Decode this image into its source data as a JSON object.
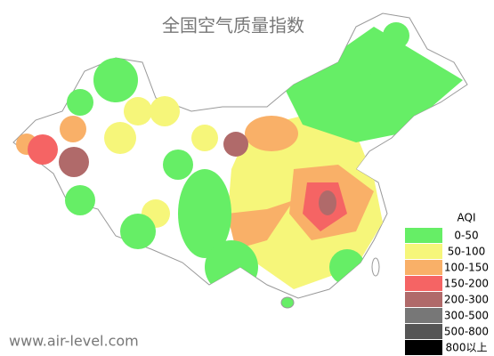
{
  "title": "全国空气质量指数",
  "legend": {
    "title": "AQI",
    "items": [
      {
        "label": "0-50",
        "color": "#66ee66"
      },
      {
        "label": "50-100",
        "color": "#f6f67a"
      },
      {
        "label": "100-150",
        "color": "#f9b068"
      },
      {
        "label": "150-200",
        "color": "#f56464"
      },
      {
        "label": "200-300",
        "color": "#b06a6a"
      },
      {
        "label": "300-500",
        "color": "#777777"
      },
      {
        "label": "500-800",
        "color": "#555555"
      },
      {
        "label": "800以上",
        "color": "#000000"
      }
    ]
  },
  "watermark": "www.air-level.com"
}
